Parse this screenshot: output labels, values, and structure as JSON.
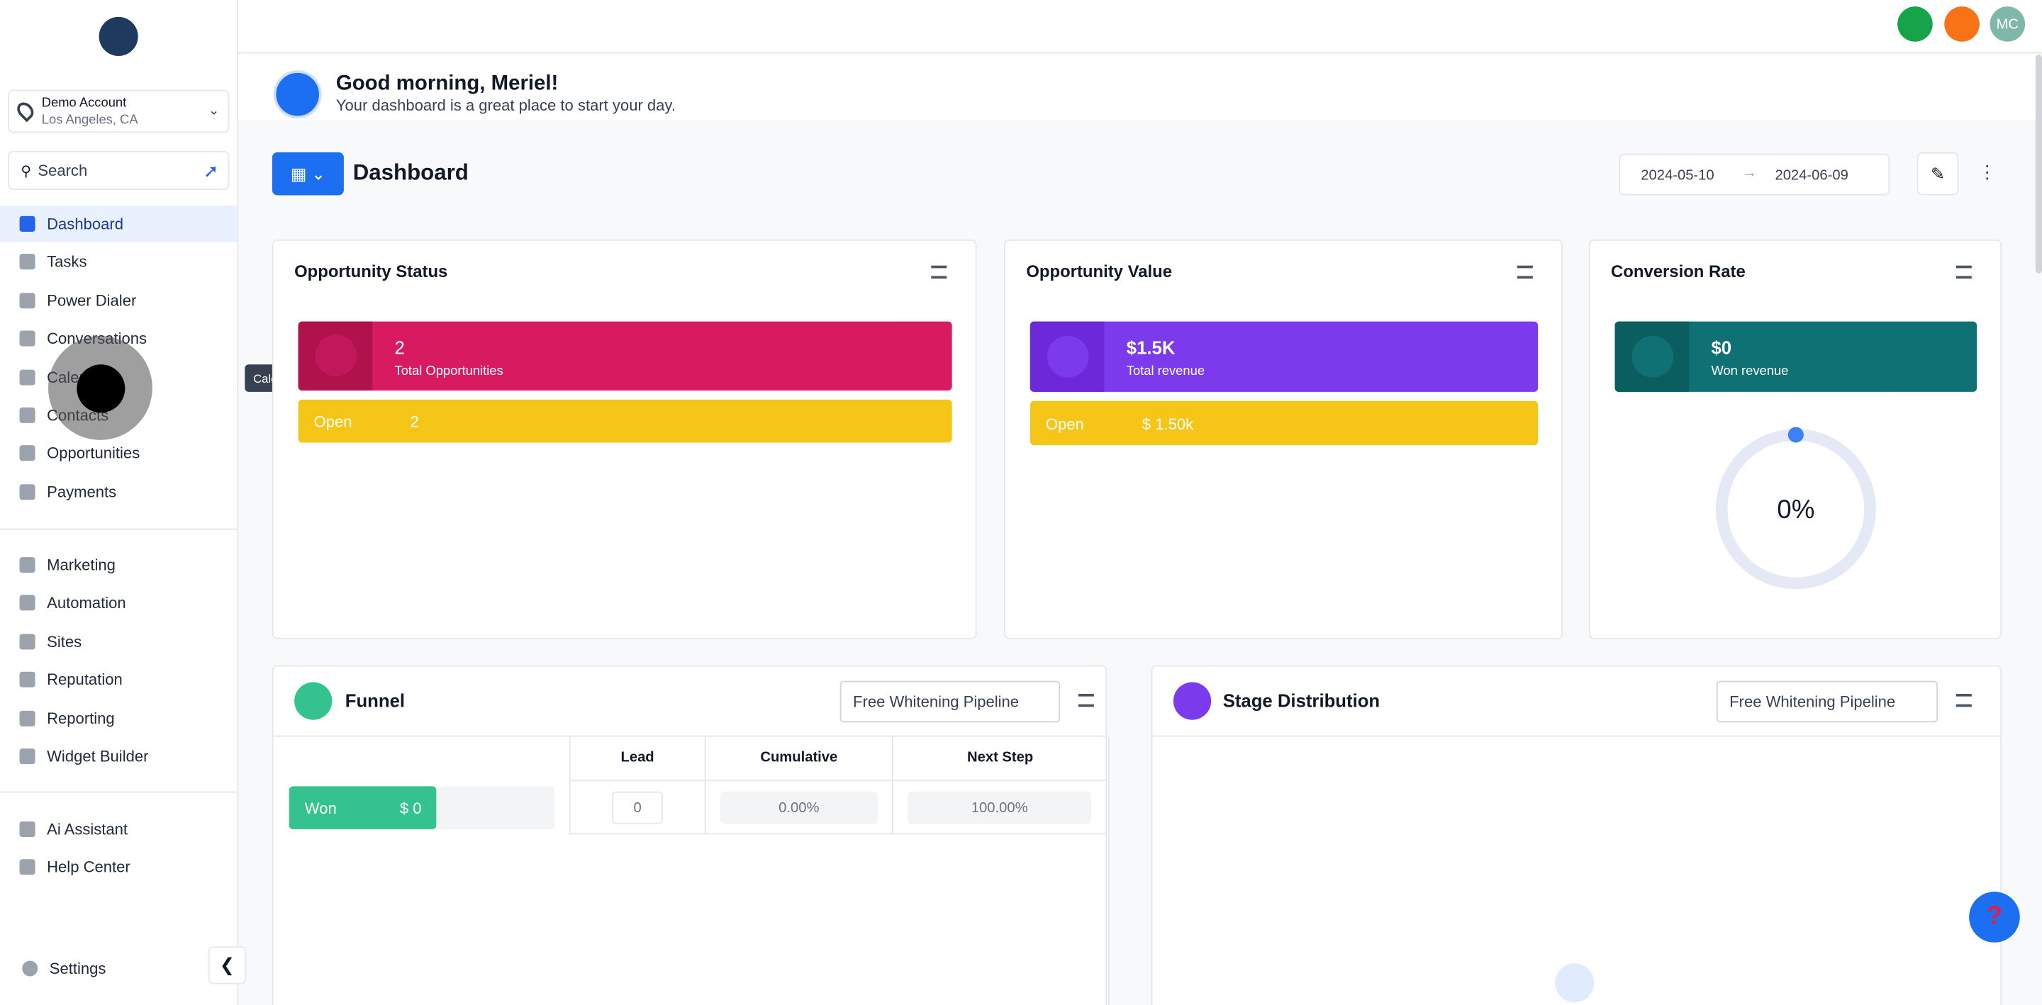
{
  "account": {
    "name": "Demo Account",
    "location": "Los Angeles, CA"
  },
  "search": "Search",
  "nav": {
    "main": [
      "Dashboard",
      "Tasks",
      "Power Dialer",
      "Conversations",
      "Calendars",
      "Contacts",
      "Opportunities",
      "Payments"
    ],
    "marketing": [
      "Marketing",
      "Automation",
      "Sites",
      "Reputation",
      "Reporting",
      "Widget Builder"
    ],
    "support": [
      "Ai Assistant",
      "Help Center"
    ],
    "settings": "Settings"
  },
  "tooltip": "Calendars",
  "topbar": {
    "avatar": "MC"
  },
  "greeting": {
    "title": "Good morning, Meriel!",
    "subtitle": "Your dashboard is a great place to start your day."
  },
  "dashboard": {
    "title": "Dashboard",
    "date_from": "2024-05-10",
    "date_to": "2024-06-09"
  },
  "cards": {
    "opportunity_status": {
      "title": "Opportunity Status",
      "value": "2",
      "label": "Total Opportunities",
      "open_label": "Open",
      "open_value": "2"
    },
    "opportunity_value": {
      "title": "Opportunity Value",
      "value": "$1.5K",
      "label": "Total revenue",
      "open_label": "Open",
      "open_value": "$ 1.50k"
    },
    "conversion_rate": {
      "title": "Conversion Rate",
      "value": "$0",
      "label": "Won revenue",
      "rate": "0%"
    }
  },
  "funnel": {
    "title": "Funnel",
    "pipeline": "Free Whitening Pipeline",
    "columns": [
      "Lead",
      "Cumulative",
      "Next Step"
    ],
    "row": {
      "stage": "Won",
      "amount": "$ 0",
      "lead": "0",
      "cumulative": "0.00%",
      "next": "100.00%"
    }
  },
  "stage_distribution": {
    "title": "Stage Distribution",
    "pipeline": "Free Whitening Pipeline"
  }
}
